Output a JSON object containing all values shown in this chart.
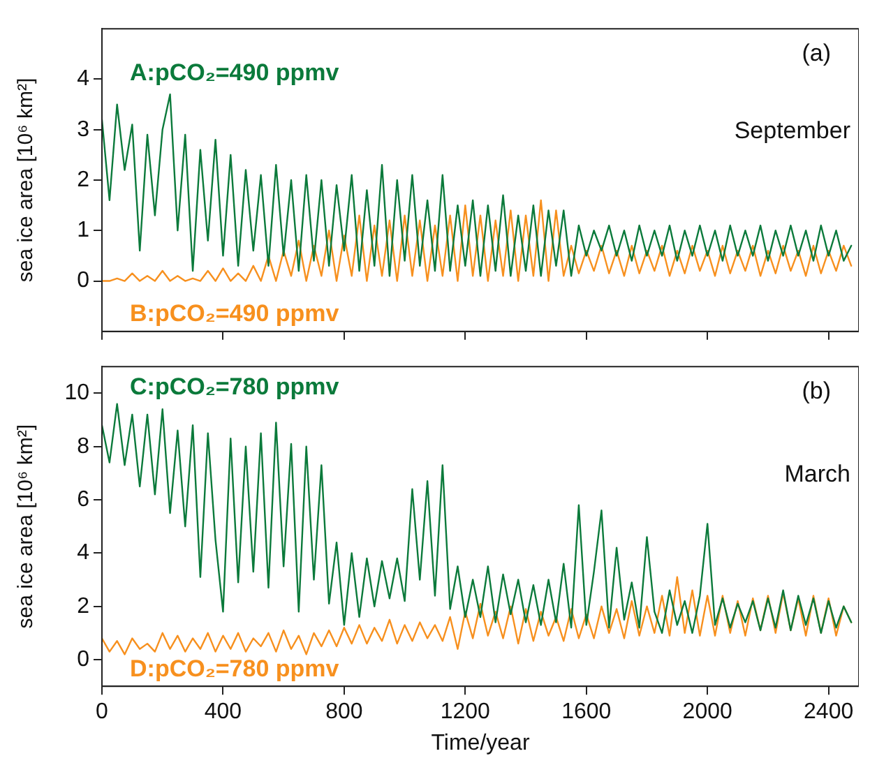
{
  "chart_data": [
    {
      "type": "line",
      "annotations": [
        "(a)",
        "September"
      ],
      "ylabel": "sea ice area [10⁶ km²]",
      "xlim": [
        0,
        2500
      ],
      "ylim": [
        -1,
        5
      ],
      "yticks": [
        0,
        1,
        2,
        3,
        4
      ],
      "xticks": [
        0,
        400,
        800,
        1200,
        1600,
        2000,
        2400
      ],
      "tick_labels": "y",
      "grid": false,
      "legend": false,
      "marker": "none",
      "line_style": "solid",
      "x": [
        0,
        25,
        50,
        75,
        100,
        125,
        150,
        175,
        200,
        225,
        250,
        275,
        300,
        325,
        350,
        375,
        400,
        425,
        450,
        475,
        500,
        525,
        550,
        575,
        600,
        625,
        650,
        675,
        700,
        725,
        750,
        775,
        800,
        825,
        850,
        875,
        900,
        925,
        950,
        975,
        1000,
        1025,
        1050,
        1075,
        1100,
        1125,
        1150,
        1175,
        1200,
        1225,
        1250,
        1275,
        1300,
        1325,
        1350,
        1375,
        1400,
        1425,
        1450,
        1475,
        1500,
        1525,
        1550,
        1575,
        1600,
        1625,
        1650,
        1675,
        1700,
        1725,
        1750,
        1775,
        1800,
        1825,
        1850,
        1875,
        1900,
        1925,
        1950,
        1975,
        2000,
        2025,
        2050,
        2075,
        2100,
        2125,
        2150,
        2175,
        2200,
        2225,
        2250,
        2275,
        2300,
        2325,
        2350,
        2375,
        2400,
        2425,
        2450,
        2475
      ],
      "series": [
        {
          "name": "A:pCO₂=490 ppmv",
          "color": "#0b7a3b",
          "values": [
            3.2,
            1.6,
            3.5,
            2.2,
            3.1,
            0.6,
            2.9,
            1.3,
            3.0,
            3.7,
            1.0,
            2.9,
            0.2,
            2.6,
            0.8,
            2.8,
            0.5,
            2.5,
            0.3,
            2.2,
            0.6,
            2.1,
            0.3,
            2.3,
            0.5,
            2.0,
            0.2,
            2.1,
            0.4,
            2.0,
            0.3,
            1.9,
            0.6,
            2.1,
            0.2,
            1.8,
            0.3,
            2.3,
            0.1,
            2.0,
            0.4,
            2.1,
            0.3,
            1.6,
            0.2,
            2.1,
            0.2,
            1.5,
            0.3,
            1.6,
            0.1,
            1.5,
            0.2,
            1.7,
            0.1,
            1.3,
            0.2,
            1.5,
            0.1,
            1.4,
            0.3,
            1.4,
            0.1,
            1.1,
            0.5,
            1.0,
            0.6,
            1.1,
            0.5,
            1.0,
            0.4,
            1.1,
            0.5,
            1.0,
            0.5,
            1.1,
            0.4,
            1.0,
            0.5,
            1.1,
            0.5,
            1.0,
            0.4,
            1.1,
            0.5,
            1.0,
            0.5,
            1.1,
            0.4,
            1.0,
            0.5,
            1.1,
            0.5,
            1.0,
            0.4,
            1.1,
            0.5,
            1.0,
            0.4,
            0.7
          ]
        },
        {
          "name": "B:pCO₂=490 ppmv",
          "color": "#f7901e",
          "values": [
            0,
            0,
            0.05,
            0,
            0.15,
            0,
            0.1,
            0,
            0.2,
            0,
            0.1,
            0,
            0.05,
            0,
            0.2,
            0,
            0.25,
            0,
            0.15,
            0,
            0.3,
            0,
            0.5,
            0,
            0.6,
            0.1,
            0.8,
            0,
            0.7,
            0.1,
            1.0,
            0,
            0.9,
            0.1,
            1.3,
            0,
            1.1,
            0.1,
            1.2,
            0,
            1.3,
            0.1,
            1.2,
            0,
            1.1,
            0.1,
            1.3,
            0,
            1.5,
            0.1,
            1.3,
            0,
            1.2,
            0.1,
            1.4,
            0,
            1.3,
            0.1,
            1.6,
            0,
            1.4,
            0.1,
            0.7,
            0.15,
            0.6,
            0.2,
            0.7,
            0.15,
            0.6,
            0.1,
            0.7,
            0.15,
            0.6,
            0.2,
            0.7,
            0.1,
            0.6,
            0.15,
            0.7,
            0.2,
            0.6,
            0.1,
            0.7,
            0.15,
            0.6,
            0.2,
            0.7,
            0.1,
            0.6,
            0.15,
            0.7,
            0.2,
            0.6,
            0.1,
            0.7,
            0.15,
            0.6,
            0.2,
            0.7,
            0.3
          ]
        }
      ]
    },
    {
      "type": "line",
      "annotations": [
        "(b)",
        "March"
      ],
      "ylabel": "sea ice area [10⁶ km²]",
      "xlabel": "Time/year",
      "xlim": [
        0,
        2500
      ],
      "ylim": [
        -1,
        11
      ],
      "yticks": [
        0,
        2,
        4,
        6,
        8,
        10
      ],
      "xticks": [
        0,
        400,
        800,
        1200,
        1600,
        2000,
        2400
      ],
      "grid": false,
      "legend": false,
      "marker": "none",
      "line_style": "solid",
      "x": [
        0,
        25,
        50,
        75,
        100,
        125,
        150,
        175,
        200,
        225,
        250,
        275,
        300,
        325,
        350,
        375,
        400,
        425,
        450,
        475,
        500,
        525,
        550,
        575,
        600,
        625,
        650,
        675,
        700,
        725,
        750,
        775,
        800,
        825,
        850,
        875,
        900,
        925,
        950,
        975,
        1000,
        1025,
        1050,
        1075,
        1100,
        1125,
        1150,
        1175,
        1200,
        1225,
        1250,
        1275,
        1300,
        1325,
        1350,
        1375,
        1400,
        1425,
        1450,
        1475,
        1500,
        1525,
        1550,
        1575,
        1600,
        1625,
        1650,
        1675,
        1700,
        1725,
        1750,
        1775,
        1800,
        1825,
        1850,
        1875,
        1900,
        1925,
        1950,
        1975,
        2000,
        2025,
        2050,
        2075,
        2100,
        2125,
        2150,
        2175,
        2200,
        2225,
        2250,
        2275,
        2300,
        2325,
        2350,
        2375,
        2400,
        2425,
        2450,
        2475
      ],
      "series": [
        {
          "name": "C:pCO₂=780 ppmv",
          "color": "#0b7a3b",
          "values": [
            8.8,
            7.4,
            9.6,
            7.3,
            9.2,
            6.5,
            9.2,
            6.2,
            9.4,
            5.5,
            8.6,
            5.0,
            8.8,
            3.1,
            8.5,
            4.5,
            1.8,
            8.3,
            2.9,
            8.0,
            3.3,
            8.5,
            2.7,
            8.9,
            3.5,
            8.1,
            1.8,
            8.0,
            3.0,
            7.3,
            2.1,
            4.4,
            1.3,
            4.0,
            1.6,
            3.8,
            2.0,
            3.7,
            2.3,
            3.8,
            2.2,
            6.4,
            3.0,
            6.7,
            2.4,
            7.3,
            1.9,
            3.5,
            1.6,
            3.0,
            1.6,
            3.5,
            1.4,
            3.2,
            1.7,
            3.0,
            1.4,
            2.8,
            1.3,
            3.0,
            1.4,
            3.6,
            1.2,
            5.8,
            1.3,
            3.3,
            5.6,
            1.2,
            4.2,
            1.5,
            2.9,
            1.2,
            4.6,
            1.8,
            1.0,
            2.6,
            1.3,
            2.2,
            1.0,
            2.4,
            5.1,
            1.3,
            2.3,
            1.2,
            2.1,
            1.4,
            2.2,
            1.1,
            2.3,
            1.2,
            2.6,
            1.1,
            2.4,
            1.3,
            2.3,
            1.0,
            2.2,
            1.2,
            2.0,
            1.4
          ]
        },
        {
          "name": "D:pCO₂=780 ppmv",
          "color": "#f7901e",
          "values": [
            0.8,
            0.3,
            0.7,
            0.2,
            0.8,
            0.4,
            0.6,
            0.3,
            1.0,
            0.4,
            0.9,
            0.3,
            0.8,
            0.4,
            1.0,
            0.3,
            0.9,
            0.4,
            1.0,
            0.3,
            0.8,
            0.5,
            1.0,
            0.3,
            1.1,
            0.4,
            0.9,
            0.2,
            1.0,
            0.5,
            1.1,
            0.5,
            1.2,
            0.6,
            1.3,
            0.6,
            1.2,
            0.7,
            1.5,
            0.6,
            1.3,
            0.7,
            1.4,
            0.8,
            1.3,
            0.7,
            1.6,
            0.4,
            1.8,
            0.8,
            2.1,
            0.9,
            1.8,
            0.8,
            2.0,
            0.6,
            1.9,
            0.7,
            1.8,
            0.9,
            1.6,
            0.7,
            1.9,
            0.8,
            1.7,
            0.8,
            2.0,
            1.0,
            1.9,
            0.8,
            2.2,
            0.9,
            2.0,
            1.0,
            2.4,
            0.9,
            3.1,
            1.0,
            2.6,
            0.9,
            2.4,
            0.9,
            2.4,
            1.0,
            2.2,
            0.9,
            2.3,
            1.1,
            2.4,
            1.0,
            2.5,
            1.1,
            2.3,
            0.9,
            2.4,
            1.0,
            2.3,
            0.9,
            2.0,
            1.4
          ]
        }
      ]
    }
  ]
}
